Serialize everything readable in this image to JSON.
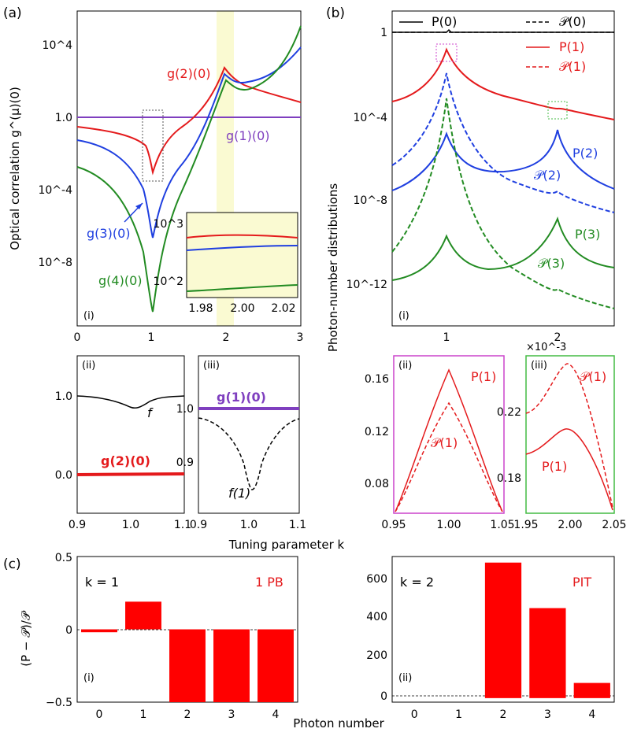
{
  "panels": {
    "a": {
      "letter": "(a)",
      "main": {
        "sub": "(i)",
        "xticks": [
          "0",
          "1",
          "2",
          "3"
        ],
        "yticks": [
          "10^4",
          "1.0",
          "10^-4",
          "10^-8"
        ],
        "ylabel": "Optical correlation g^(μ)(0)",
        "labels": {
          "g2": "g(2)(0)",
          "g1": "g(1)(0)",
          "g3": "g(3)(0)",
          "g4": "g(4)(0)"
        },
        "colors": {
          "g1": "#7f3fbf",
          "g2": "#e41a1c",
          "g3": "#1f3fe0",
          "g4": "#228b22"
        }
      },
      "inset": {
        "xticks": [
          "1.98",
          "2.00",
          "2.02"
        ],
        "yticks": [
          "10^3",
          "10^2"
        ]
      },
      "ii": {
        "sub": "(ii)",
        "yticks": [
          "1.0",
          "0.0"
        ],
        "xticks": [
          "0.9",
          "1.0",
          "1.1"
        ],
        "f_label": "f",
        "g2_label": "g(2)(0)"
      },
      "iii": {
        "sub": "(iii)",
        "yticks": [
          "1.0",
          "0.9"
        ],
        "xticks": [
          "0.9",
          "1.0",
          "1.1"
        ],
        "g1_label": "g(1)(0)",
        "f1_label": "f(1)"
      },
      "xlabel": "Tuning parameter k"
    },
    "b": {
      "letter": "(b)",
      "main": {
        "sub": "(i)",
        "xticks": [
          "1",
          "2"
        ],
        "yticks": [
          "1",
          "10^-4",
          "10^-8",
          "10^-12"
        ],
        "ylabel": "Photon-number distributions",
        "legend": [
          "P(0)",
          "𝒫(0)",
          "P(1)",
          "𝒫(1)"
        ],
        "labels": {
          "p2": "P(2)",
          "q2": "𝒫(2)",
          "p3": "P(3)",
          "q3": "𝒫(3)"
        }
      },
      "ii": {
        "sub": "(ii)",
        "yticks": [
          "0.16",
          "0.12",
          "0.08"
        ],
        "xticks": [
          "0.95",
          "1.00",
          "1.05"
        ],
        "p1": "P(1)",
        "q1": "𝒫(1)"
      },
      "iii": {
        "sub": "(iii)",
        "scale": "×10^-3",
        "yticks": [
          "0.22",
          "0.18"
        ],
        "xticks": [
          "1.95",
          "2.00",
          "2.05"
        ],
        "p1": "P(1)",
        "q1": "𝒫(1)"
      }
    },
    "c": {
      "letter": "(c)",
      "ylabel": "(P − 𝒫)/𝒫",
      "xlabel": "Photon number",
      "left": {
        "sub": "(i)",
        "k_label": "k = 1",
        "tag": "1 PB",
        "yticks": [
          "0.5",
          "0",
          "−0.5"
        ],
        "xticks": [
          "0",
          "1",
          "2",
          "3",
          "4"
        ]
      },
      "right": {
        "sub": "(ii)",
        "k_label": "k = 2",
        "tag": "PIT",
        "yticks": [
          "600",
          "400",
          "200",
          "0"
        ],
        "xticks": [
          "0",
          "1",
          "2",
          "3",
          "4"
        ]
      }
    }
  },
  "chart_data": [
    {
      "id": "c-i",
      "type": "bar",
      "title": "k = 1 (1 PB)",
      "categories": [
        "0",
        "1",
        "2",
        "3",
        "4"
      ],
      "values": [
        -0.02,
        0.19,
        -0.5,
        -0.5,
        -0.5
      ],
      "ylim": [
        -0.5,
        0.5
      ],
      "xlabel": "Photon number",
      "ylabel": "(P − 𝒫)/𝒫",
      "color": "#ff0000"
    },
    {
      "id": "c-ii",
      "type": "bar",
      "title": "k = 2 (PIT)",
      "categories": [
        "0",
        "1",
        "2",
        "3",
        "4"
      ],
      "values": [
        0,
        0,
        670,
        445,
        75
      ],
      "ylim": [
        -20,
        700
      ],
      "xlabel": "Photon number",
      "ylabel": "(P − 𝒫)/𝒫",
      "color": "#ff0000"
    }
  ]
}
